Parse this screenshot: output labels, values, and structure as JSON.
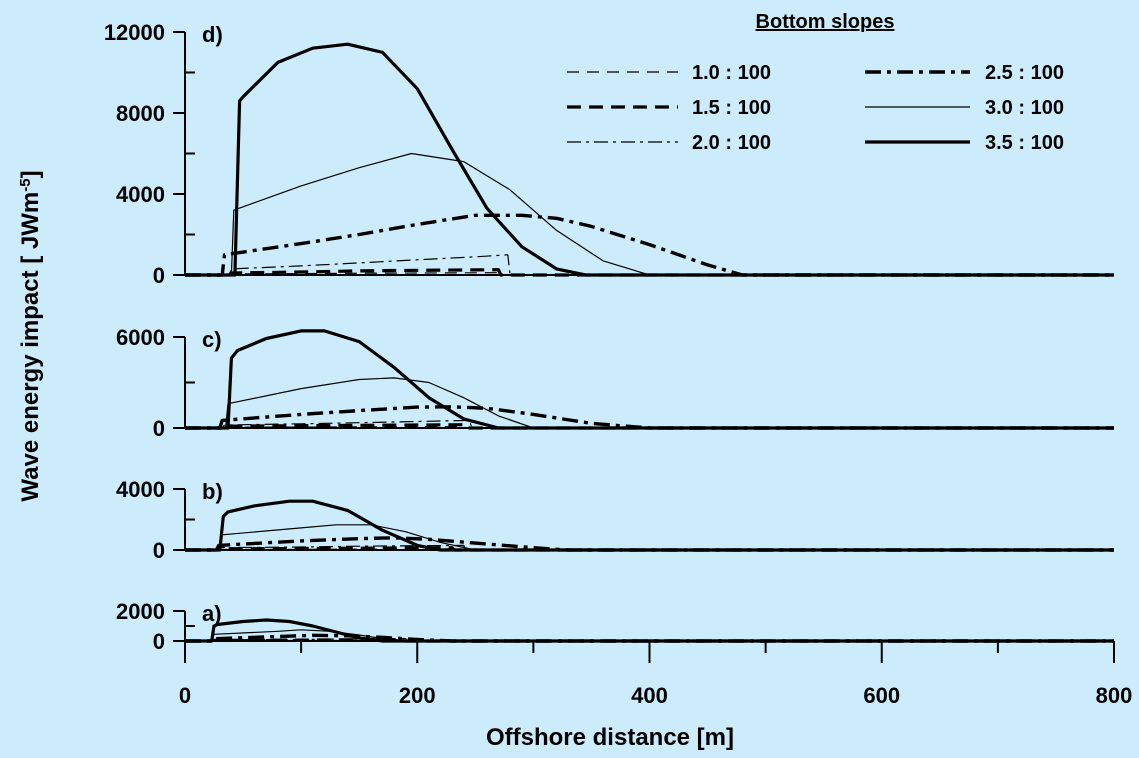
{
  "chart_data": {
    "type": "line",
    "xlabel": "Offshore distance [m]",
    "ylabel": "Wave energy impact [ JWm",
    "ylabel_superscript": "-5",
    "ylabel_suffix": "]",
    "xlim": [
      0,
      800
    ],
    "x_ticks": [
      0,
      200,
      400,
      600,
      800
    ],
    "x_tick_labels": [
      "0",
      "200",
      "400",
      "600",
      "800"
    ],
    "grid": false,
    "legend": {
      "title": "Bottom slopes",
      "placement": "top-right",
      "entries": [
        {
          "label": "1.0 : 100",
          "style": "thin-dashed"
        },
        {
          "label": "1.5 : 100",
          "style": "thick-dashed"
        },
        {
          "label": "2.0 : 100",
          "style": "thin-dashdot"
        },
        {
          "label": "2.5 : 100",
          "style": "thick-dashdot"
        },
        {
          "label": "3.0 : 100",
          "style": "thin-solid"
        },
        {
          "label": "3.5 : 100",
          "style": "thick-solid"
        }
      ]
    },
    "panels": [
      {
        "label": "d)",
        "ylim": [
          0,
          12000
        ],
        "y_ticks": [
          0,
          4000,
          8000,
          12000
        ],
        "y_tick_labels": [
          "0",
          "4000",
          "8000",
          "12000"
        ],
        "series": [
          {
            "name": "1.0 : 100",
            "x": [
              0,
              35,
              38,
              100,
              150,
              200,
              250,
              270,
              272,
              800
            ],
            "y": [
              0,
              0,
              50,
              70,
              90,
              100,
              110,
              115,
              0,
              0
            ]
          },
          {
            "name": "1.5 : 100",
            "x": [
              0,
              38,
              40,
              100,
              150,
              200,
              250,
              270,
              272,
              800
            ],
            "y": [
              0,
              0,
              100,
              150,
              200,
              230,
              250,
              260,
              0,
              0
            ]
          },
          {
            "name": "2.0 : 100",
            "x": [
              0,
              38,
              40,
              100,
              150,
              200,
              250,
              278,
              280,
              800
            ],
            "y": [
              0,
              0,
              300,
              450,
              600,
              750,
              900,
              1000,
              0,
              0
            ]
          },
          {
            "name": "2.5 : 100",
            "x": [
              0,
              32,
              34,
              100,
              150,
              200,
              250,
              290,
              320,
              350,
              400,
              450,
              480,
              800
            ],
            "y": [
              0,
              0,
              1000,
              1550,
              2000,
              2500,
              2950,
              2950,
              2800,
              2400,
              1500,
              500,
              0,
              0
            ]
          },
          {
            "name": "3.0 : 100",
            "x": [
              0,
              40,
              42,
              100,
              150,
              195,
              240,
              280,
              320,
              360,
              400,
              800
            ],
            "y": [
              0,
              0,
              3200,
              4400,
              5300,
              6000,
              5600,
              4200,
              2200,
              700,
              0,
              0
            ]
          },
          {
            "name": "3.5 : 100",
            "x": [
              0,
              43,
              47,
              50,
              80,
              110,
              140,
              170,
              200,
              230,
              260,
              290,
              320,
              345,
              800
            ],
            "y": [
              0,
              0,
              8600,
              8800,
              10500,
              11200,
              11400,
              11000,
              9200,
              6200,
              3300,
              1400,
              300,
              0,
              0
            ]
          }
        ]
      },
      {
        "label": "c)",
        "ylim": [
          0,
          6000
        ],
        "y_ticks": [
          0,
          6000
        ],
        "y_tick_labels": [
          "0",
          "6000"
        ],
        "series": [
          {
            "name": "1.0 : 100",
            "x": [
              0,
              30,
              32,
              100,
              150,
              200,
              240,
              242,
              800
            ],
            "y": [
              0,
              0,
              50,
              60,
              70,
              80,
              90,
              0,
              0
            ]
          },
          {
            "name": "1.5 : 100",
            "x": [
              0,
              32,
              34,
              100,
              150,
              200,
              240,
              242,
              800
            ],
            "y": [
              0,
              0,
              120,
              150,
              180,
              200,
              220,
              0,
              0
            ]
          },
          {
            "name": "2.0 : 100",
            "x": [
              0,
              32,
              34,
              100,
              150,
              200,
              245,
              247,
              800
            ],
            "y": [
              0,
              0,
              200,
              280,
              350,
              430,
              500,
              0,
              0
            ]
          },
          {
            "name": "2.5 : 100",
            "x": [
              0,
              30,
              32,
              100,
              150,
              200,
              230,
              260,
              300,
              350,
              400,
              800
            ],
            "y": [
              0,
              0,
              500,
              900,
              1150,
              1380,
              1400,
              1300,
              900,
              300,
              0,
              0
            ]
          },
          {
            "name": "3.0 : 100",
            "x": [
              0,
              35,
              37,
              100,
              150,
              180,
              210,
              240,
              270,
              300,
              800
            ],
            "y": [
              0,
              0,
              1600,
              2600,
              3200,
              3300,
              3000,
              2000,
              800,
              0,
              0
            ]
          },
          {
            "name": "3.5 : 100",
            "x": [
              0,
              37,
              40,
              45,
              70,
              100,
              120,
              150,
              180,
              210,
              240,
              270,
              800
            ],
            "y": [
              0,
              0,
              4600,
              5100,
              5900,
              6400,
              6400,
              5700,
              4000,
              2000,
              600,
              0,
              0
            ]
          }
        ]
      },
      {
        "label": "b)",
        "ylim": [
          0,
          4000
        ],
        "y_ticks": [
          0,
          4000
        ],
        "y_tick_labels": [
          "0",
          "4000"
        ],
        "series": [
          {
            "name": "1.0 : 100",
            "x": [
              0,
              25,
              27,
              100,
              150,
              200,
              230,
              232,
              800
            ],
            "y": [
              0,
              0,
              30,
              40,
              50,
              60,
              70,
              0,
              0
            ]
          },
          {
            "name": "1.5 : 100",
            "x": [
              0,
              27,
              29,
              100,
              150,
              200,
              230,
              232,
              800
            ],
            "y": [
              0,
              0,
              80,
              100,
              120,
              140,
              150,
              0,
              0
            ]
          },
          {
            "name": "2.0 : 100",
            "x": [
              0,
              27,
              29,
              100,
              150,
              200,
              240,
              242,
              800
            ],
            "y": [
              0,
              0,
              150,
              200,
              250,
              280,
              300,
              0,
              0
            ]
          },
          {
            "name": "2.5 : 100",
            "x": [
              0,
              27,
              29,
              100,
              150,
              180,
              210,
              250,
              300,
              330,
              800
            ],
            "y": [
              0,
              0,
              300,
              600,
              750,
              800,
              700,
              450,
              150,
              0,
              0
            ]
          },
          {
            "name": "3.0 : 100",
            "x": [
              0,
              30,
              32,
              100,
              130,
              160,
              190,
              220,
              250,
              800
            ],
            "y": [
              0,
              0,
              1000,
              1450,
              1650,
              1650,
              1200,
              500,
              0,
              0
            ]
          },
          {
            "name": "3.5 : 100",
            "x": [
              0,
              30,
              33,
              37,
              60,
              90,
              110,
              140,
              170,
              200,
              220,
              800
            ],
            "y": [
              0,
              0,
              2200,
              2500,
              2900,
              3200,
              3200,
              2600,
              1300,
              300,
              0,
              0
            ]
          }
        ]
      },
      {
        "label": "a)",
        "ylim": [
          0,
          2000
        ],
        "y_ticks": [
          0,
          2000
        ],
        "y_tick_labels": [
          "0",
          "2000"
        ],
        "series": [
          {
            "name": "1.0 : 100",
            "x": [
              0,
              20,
              22,
              100,
              150,
              180,
              182,
              800
            ],
            "y": [
              0,
              0,
              20,
              30,
              40,
              50,
              0,
              0
            ]
          },
          {
            "name": "1.5 : 100",
            "x": [
              0,
              22,
              24,
              100,
              150,
              180,
              182,
              800
            ],
            "y": [
              0,
              0,
              40,
              60,
              80,
              90,
              0,
              0
            ]
          },
          {
            "name": "2.0 : 100",
            "x": [
              0,
              22,
              24,
              100,
              150,
              190,
              192,
              800
            ],
            "y": [
              0,
              0,
              80,
              110,
              140,
              160,
              0,
              0
            ]
          },
          {
            "name": "2.5 : 100",
            "x": [
              0,
              22,
              24,
              80,
              110,
              140,
              170,
              200,
              230,
              800
            ],
            "y": [
              0,
              0,
              150,
              300,
              380,
              350,
              250,
              100,
              0,
              0
            ]
          },
          {
            "name": "3.0 : 100",
            "x": [
              0,
              23,
              25,
              80,
              100,
              125,
              150,
              175,
              200,
              800
            ],
            "y": [
              0,
              0,
              450,
              650,
              750,
              650,
              400,
              100,
              0,
              0
            ]
          },
          {
            "name": "3.5 : 100",
            "x": [
              0,
              23,
              25,
              28,
              50,
              70,
              90,
              110,
              130,
              150,
              170,
              800
            ],
            "y": [
              0,
              0,
              1000,
              1100,
              1300,
              1400,
              1300,
              1000,
              600,
              200,
              0,
              0
            ]
          }
        ]
      }
    ]
  }
}
